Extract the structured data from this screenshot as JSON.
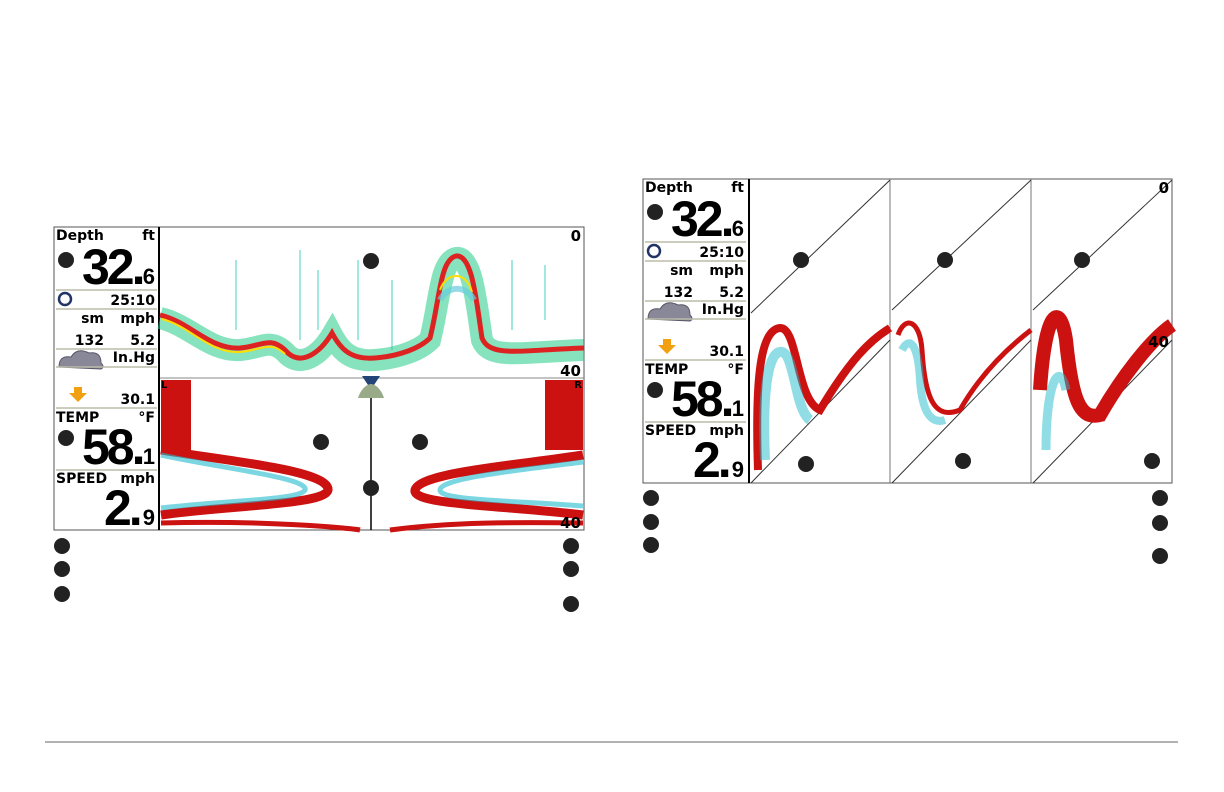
{
  "screens": [
    {
      "sidebar": {
        "depth_label": "Depth",
        "depth_unit": "ft",
        "depth_whole": "32.",
        "depth_decimal": "6",
        "time": "25:10",
        "distance_unit": "sm",
        "speed_unit": "mph",
        "distance": "132",
        "speed": "5.2",
        "pressure_unit": "In.Hg",
        "pressure": "30.1",
        "temp_label": "TEMP",
        "temp_unit": "°F",
        "temp_whole": "58.",
        "temp_decimal": "1",
        "speed_label": "SPEED",
        "speed_label_unit": "mph",
        "speed_whole": "2.",
        "speed_decimal": "9"
      },
      "scale_top": "0",
      "scale_bottom": "40",
      "side_left": "L",
      "side_right": "R",
      "side_scale_bottom": "40"
    },
    {
      "sidebar": {
        "depth_label": "Depth",
        "depth_unit": "ft",
        "depth_whole": "32.",
        "depth_decimal": "6",
        "time": "25:10",
        "distance_unit": "sm",
        "speed_unit": "mph",
        "distance": "132",
        "speed": "5.2",
        "pressure_unit": "In.Hg",
        "pressure": "30.1",
        "temp_label": "TEMP",
        "temp_unit": "°F",
        "temp_whole": "58.",
        "temp_decimal": "1",
        "speed_label": "SPEED",
        "speed_label_unit": "mph",
        "speed_whole": "2.",
        "speed_decimal": "9"
      },
      "scale_top": "0",
      "scale_bottom": "40"
    }
  ]
}
